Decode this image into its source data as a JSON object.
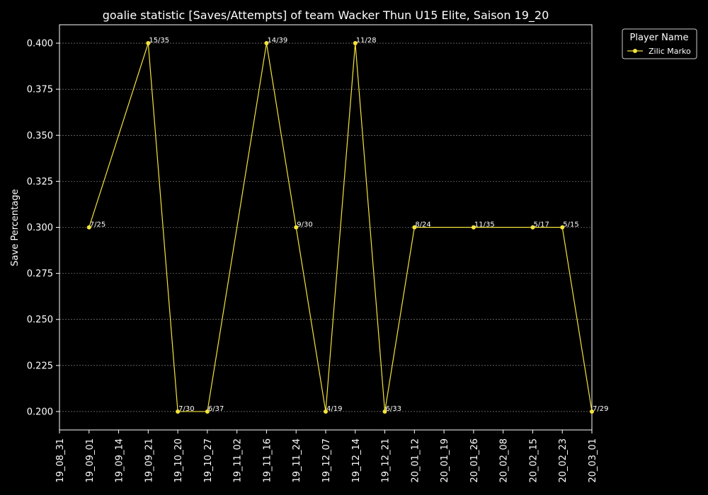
{
  "chart_data": {
    "type": "line",
    "title": "goalie statistic [Saves/Attempts] of team Wacker Thun U15 Elite, Saison 19_20",
    "xlabel": "",
    "ylabel": "Save Percentage",
    "ylim": [
      0.19,
      0.41
    ],
    "yticks": [
      0.2,
      0.225,
      0.25,
      0.275,
      0.3,
      0.325,
      0.35,
      0.375,
      0.4
    ],
    "ytick_labels": [
      "0.200",
      "0.225",
      "0.250",
      "0.275",
      "0.300",
      "0.325",
      "0.350",
      "0.375",
      "0.400"
    ],
    "x_categories": [
      "19_08_31",
      "19_09_01",
      "19_09_14",
      "19_09_21",
      "19_10_20",
      "19_10_27",
      "19_11_02",
      "19_11_16",
      "19_11_24",
      "19_12_07",
      "19_12_14",
      "19_12_21",
      "20_01_12",
      "20_01_19",
      "20_01_26",
      "20_02_08",
      "20_02_15",
      "20_02_23",
      "20_03_01"
    ],
    "grid": "y",
    "legend": {
      "title": "Player Name",
      "placement": "outside-top-right"
    },
    "series": [
      {
        "name": "Zilic Marko",
        "color": "#f5e43a",
        "points": [
          {
            "x": "19_09_01",
            "y": 0.3,
            "label": "7/25"
          },
          {
            "x": "19_09_14",
            "y": null,
            "label": ""
          },
          {
            "x": "19_09_21",
            "y": 0.4,
            "label": "15/35"
          },
          {
            "x": "19_10_20",
            "y": 0.2,
            "label": "7/30"
          },
          {
            "x": "19_10_27",
            "y": 0.2,
            "label": "6/37"
          },
          {
            "x": "19_11_02",
            "y": null,
            "label": ""
          },
          {
            "x": "19_11_16",
            "y": 0.4,
            "label": "14/39"
          },
          {
            "x": "19_11_24",
            "y": 0.3,
            "label": "9/30"
          },
          {
            "x": "19_12_07",
            "y": 0.2,
            "label": "4/19"
          },
          {
            "x": "19_12_14",
            "y": 0.4,
            "label": "11/28"
          },
          {
            "x": "19_12_21",
            "y": 0.2,
            "label": "6/33"
          },
          {
            "x": "20_01_12",
            "y": 0.3,
            "label": "8/24"
          },
          {
            "x": "20_01_19",
            "y": null,
            "label": ""
          },
          {
            "x": "20_01_26",
            "y": 0.3,
            "label": "11/35"
          },
          {
            "x": "20_02_08",
            "y": null,
            "label": ""
          },
          {
            "x": "20_02_15",
            "y": 0.3,
            "label": "5/17"
          },
          {
            "x": "20_02_23",
            "y": 0.3,
            "label": "5/15"
          },
          {
            "x": "20_03_01",
            "y": 0.2,
            "label": "7/29"
          }
        ]
      }
    ]
  }
}
